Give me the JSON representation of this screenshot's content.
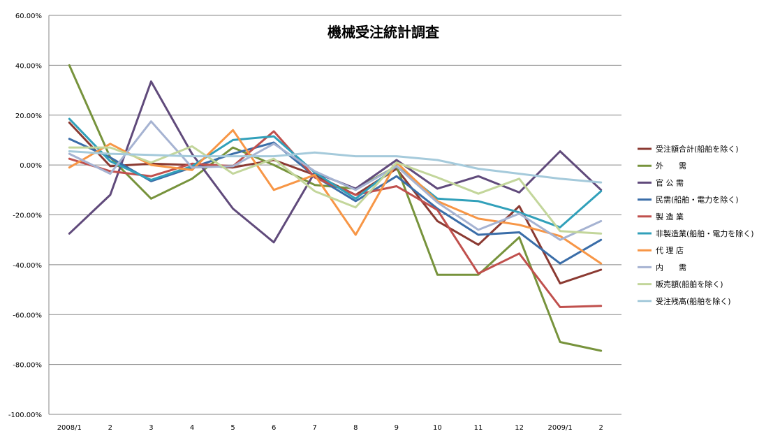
{
  "chart_data": {
    "type": "line",
    "title": "機械受注統計調査",
    "xlabel": "",
    "ylabel": "",
    "ylim": [
      -1.0,
      0.6
    ],
    "y_ticks": [
      {
        "value": 0.6,
        "label": "60.00%"
      },
      {
        "value": 0.4,
        "label": "40.00%"
      },
      {
        "value": 0.2,
        "label": "20.00%"
      },
      {
        "value": 0.0,
        "label": "0.00%"
      },
      {
        "value": -0.2,
        "label": "-20.00%"
      },
      {
        "value": -0.4,
        "label": "-40.00%"
      },
      {
        "value": -0.6,
        "label": "-60.00%"
      },
      {
        "value": -0.8,
        "label": "-80.00%"
      },
      {
        "value": -1.0,
        "label": "-100.00%"
      }
    ],
    "categories": [
      "2008/1",
      "2",
      "3",
      "4",
      "5",
      "6",
      "7",
      "8",
      "9",
      "10",
      "11",
      "12",
      "2009/1",
      "2"
    ],
    "grid": true,
    "legend_position": "right",
    "series": [
      {
        "name": "受注額合計(船舶を除く)",
        "color": "#8B3A32",
        "values": [
          0.17,
          -0.005,
          0.005,
          0.0,
          -0.01,
          0.02,
          -0.04,
          -0.12,
          -0.015,
          -0.225,
          -0.32,
          -0.165,
          -0.475,
          -0.42
        ]
      },
      {
        "name": "外　　需",
        "color": "#77933C",
        "values": [
          0.4,
          0.03,
          -0.135,
          -0.055,
          0.07,
          0.0,
          -0.08,
          -0.095,
          -0.005,
          -0.44,
          -0.44,
          -0.29,
          -0.71,
          -0.745
        ]
      },
      {
        "name": "官 公 需",
        "color": "#604A7B",
        "values": [
          -0.275,
          -0.12,
          0.335,
          0.045,
          -0.175,
          -0.31,
          -0.03,
          -0.095,
          0.02,
          -0.095,
          -0.045,
          -0.11,
          0.055,
          -0.1
        ]
      },
      {
        "name": "民需(船舶・電力を除く)",
        "color": "#3A6DA8",
        "values": [
          0.105,
          0.03,
          -0.065,
          -0.01,
          0.045,
          0.09,
          -0.045,
          -0.145,
          -0.045,
          -0.175,
          -0.28,
          -0.27,
          -0.395,
          -0.3
        ]
      },
      {
        "name": "製 造 業",
        "color": "#C0504D",
        "values": [
          0.025,
          -0.025,
          -0.045,
          0.005,
          -0.005,
          0.135,
          -0.05,
          -0.12,
          -0.085,
          -0.18,
          -0.435,
          -0.355,
          -0.57,
          -0.565
        ]
      },
      {
        "name": "非製造業(船舶・電力を除く)",
        "color": "#31A0BA",
        "values": [
          0.185,
          0.015,
          -0.06,
          -0.005,
          0.1,
          0.115,
          -0.03,
          -0.135,
          -0.005,
          -0.135,
          -0.145,
          -0.19,
          -0.25,
          -0.105
        ]
      },
      {
        "name": "代 理 店",
        "color": "#F79646",
        "values": [
          -0.01,
          0.085,
          0.0,
          -0.02,
          0.14,
          -0.1,
          -0.04,
          -0.28,
          0.01,
          -0.145,
          -0.215,
          -0.24,
          -0.285,
          -0.395
        ]
      },
      {
        "name": "内　　需",
        "color": "#A6B3D2",
        "values": [
          0.045,
          -0.035,
          0.175,
          -0.01,
          -0.005,
          0.085,
          -0.025,
          -0.1,
          -0.005,
          -0.15,
          -0.26,
          -0.195,
          -0.3,
          -0.225
        ]
      },
      {
        "name": "販売額(船舶を除く)",
        "color": "#C3D69B",
        "values": [
          0.07,
          0.07,
          0.01,
          0.075,
          -0.035,
          0.025,
          -0.105,
          -0.17,
          0.01,
          -0.05,
          -0.115,
          -0.055,
          -0.265,
          -0.275
        ]
      },
      {
        "name": "受注残高(船舶を除く)",
        "color": "#A5CADB",
        "values": [
          0.055,
          0.045,
          0.04,
          0.035,
          0.035,
          0.035,
          0.05,
          0.035,
          0.035,
          0.02,
          -0.015,
          -0.035,
          -0.055,
          -0.07
        ]
      }
    ]
  }
}
